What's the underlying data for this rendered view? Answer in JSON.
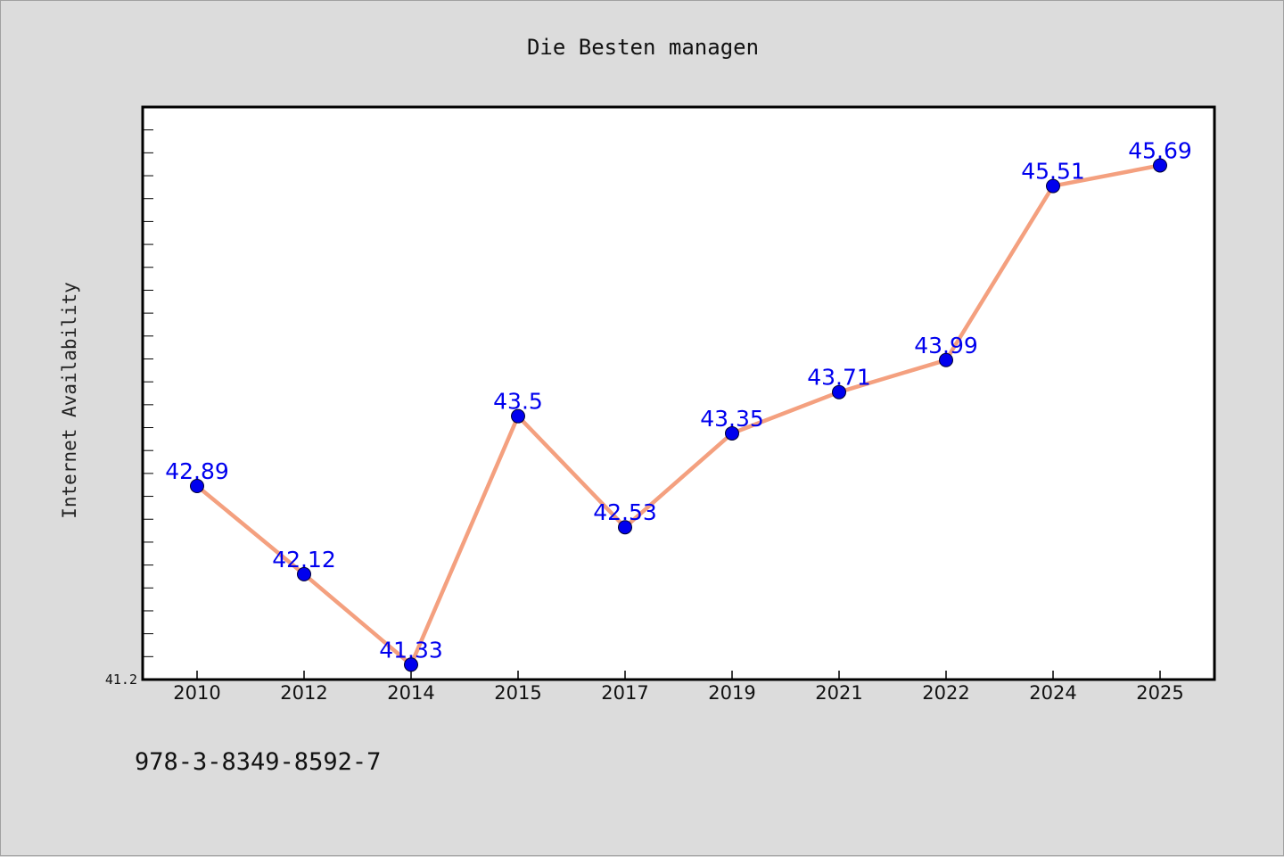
{
  "chart_data": {
    "type": "line",
    "title": "Die Besten managen",
    "xlabel": "",
    "ylabel": "Internet Availability",
    "categories": [
      "2010",
      "2012",
      "2014",
      "2015",
      "2017",
      "2019",
      "2021",
      "2022",
      "2024",
      "2025"
    ],
    "series": [
      {
        "values": [
          42.89,
          42.12,
          41.33,
          43.5,
          42.53,
          43.35,
          43.71,
          43.99,
          45.51,
          45.69
        ],
        "data_labels": [
          "42.89",
          "42.12",
          "41.33",
          "43.5",
          "42.53",
          "43.35",
          "43.71",
          "43.99",
          "45.51",
          "45.69"
        ]
      }
    ],
    "ylim": [
      41.2,
      46.2
    ],
    "y_tick_labels": [
      "41.2"
    ],
    "grid": false,
    "legend": "none",
    "colors": {
      "line": "#f4a07f",
      "marker": "#0000ee",
      "label": "#0000ee"
    }
  },
  "footer": {
    "isbn": "978-3-8349-8592-7"
  }
}
